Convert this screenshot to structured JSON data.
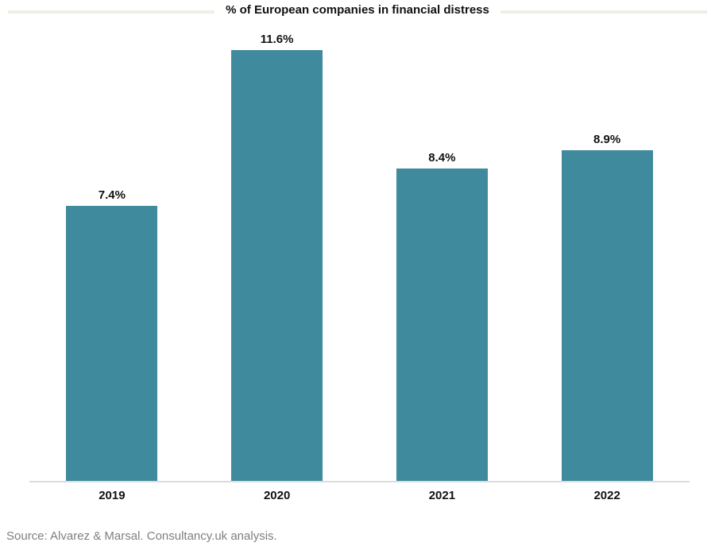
{
  "chart": {
    "title": "% of European companies in financial distress",
    "source": "Source: Alvarez & Marsal. Consultancy.uk analysis."
  },
  "chart_data": {
    "type": "bar",
    "title": "% of European companies in financial distress",
    "categories": [
      "2019",
      "2020",
      "2021",
      "2022"
    ],
    "values": [
      7.4,
      11.6,
      8.4,
      8.9
    ],
    "value_labels": [
      "7.4%",
      "11.6%",
      "8.4%",
      "8.9%"
    ],
    "xlabel": "",
    "ylabel": "",
    "ylim": [
      0,
      12.3
    ],
    "grid": false,
    "legend": false,
    "bar_color": "#3f8a9d",
    "axis_color": "#dcdcdc",
    "label_color": "#111111",
    "source_color": "#7f7f7f",
    "top_rule_color": "#f1eee5",
    "annotation": "Source: Alvarez & Marsal. Consultancy.uk analysis."
  }
}
